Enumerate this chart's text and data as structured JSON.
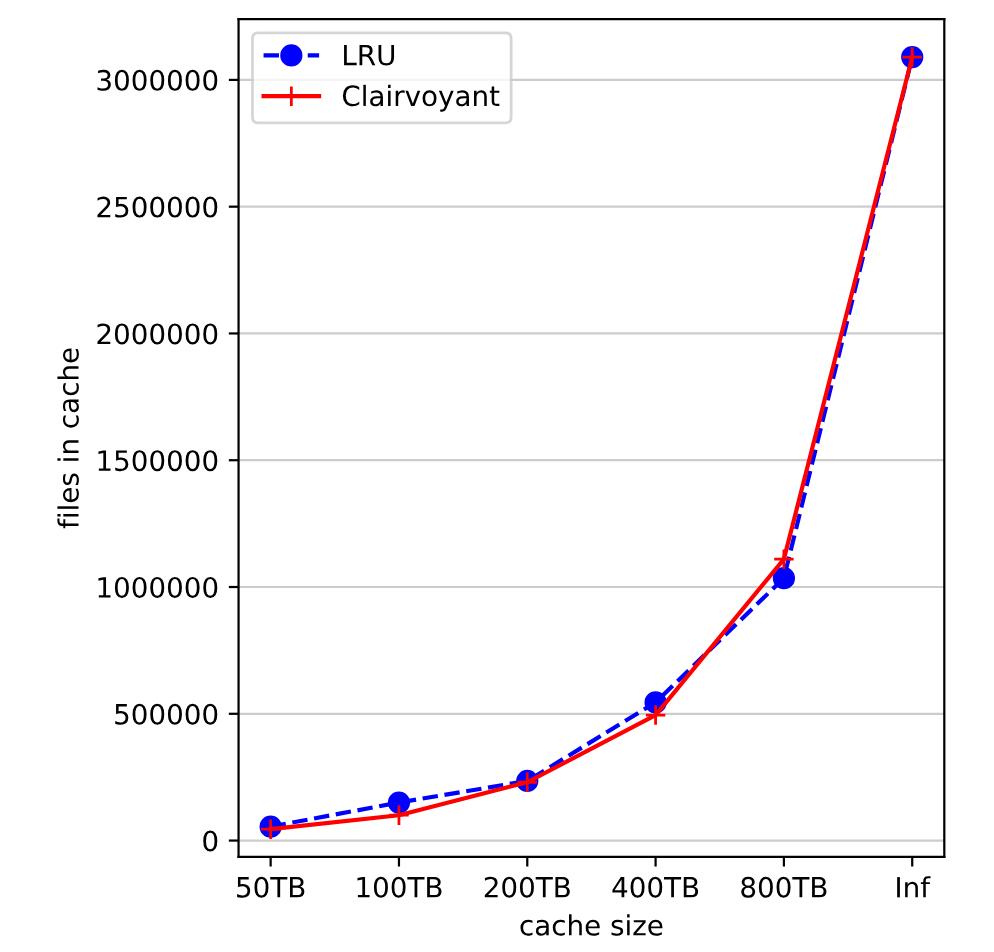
{
  "chart_data": {
    "type": "line",
    "xlabel": "cache size",
    "ylabel": "files in cache",
    "categories": [
      "50TB",
      "100TB",
      "200TB",
      "400TB",
      "800TB",
      "Inf"
    ],
    "series": [
      {
        "name": "LRU",
        "color": "#0000ff",
        "values": [
          55000,
          150000,
          235000,
          545000,
          1035000,
          3090000
        ],
        "marker": "circle",
        "line_style": "dashed"
      },
      {
        "name": "Clairvoyant",
        "color": "#ff0000",
        "values": [
          45000,
          100000,
          230000,
          495000,
          1110000,
          3090000
        ],
        "marker": "cross",
        "line_style": "solid"
      }
    ],
    "ylim": [
      -64000,
      3240000
    ],
    "yticks": [
      0,
      500000,
      1000000,
      1500000,
      2000000,
      2500000,
      3000000
    ],
    "grid": "y",
    "legend": "top left"
  }
}
